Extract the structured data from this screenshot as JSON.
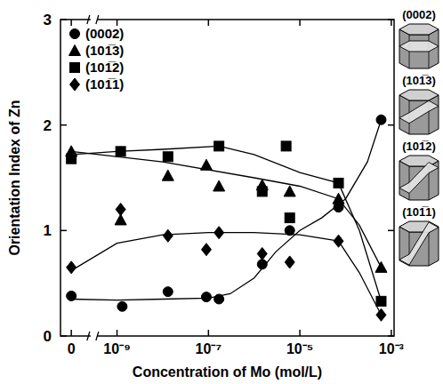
{
  "chart_data": {
    "type": "scatter",
    "x_label": "Concentration of Mo (mol/L)",
    "y_label": "Orientation Index of Zn",
    "log": "x",
    "legend": "upper left",
    "xlim": [
      5.8e-11,
      0.00115
    ],
    "ylim": [
      0,
      3
    ],
    "xticks": [
      {
        "value": 1e-10,
        "label": "0"
      },
      {
        "value": 1e-09,
        "label": "10⁻⁹"
      },
      {
        "value": 1e-07,
        "label": "10⁻⁷"
      },
      {
        "value": 1e-05,
        "label": "10⁻⁵"
      },
      {
        "value": 0.001,
        "label": "10⁻³"
      }
    ],
    "yticks": [
      0,
      1,
      2,
      3
    ],
    "plane_icons": [
      "(0002)",
      "(101̅3)",
      "(101̅2)",
      "(101̅1)"
    ],
    "series": [
      {
        "name": "(0002)",
        "color": "#000000",
        "marker": "circle",
        "x": [
          1e-10,
          1.3e-09,
          1.3e-08,
          9e-08,
          1.7e-07,
          1.5e-06,
          6e-06,
          7e-05,
          0.0006
        ],
        "values": [
          0.38,
          0.28,
          0.42,
          0.37,
          0.35,
          0.68,
          1.0,
          1.22,
          2.05
        ],
        "fit_x": [
          1e-10,
          1e-09,
          1e-08,
          1e-07,
          3e-07,
          1e-06,
          3e-06,
          1e-05,
          3e-05,
          0.0001,
          0.0003,
          0.0006
        ],
        "fit_values": [
          0.35,
          0.34,
          0.35,
          0.36,
          0.4,
          0.55,
          0.8,
          1.0,
          1.12,
          1.3,
          1.65,
          2.05
        ]
      },
      {
        "name": "(101̅3)",
        "color": "#000000",
        "marker": "triangle",
        "x": [
          1e-10,
          1.2e-09,
          1.3e-08,
          9e-08,
          1.7e-07,
          1.5e-06,
          6e-06,
          7e-05,
          0.0006
        ],
        "values": [
          1.75,
          1.1,
          1.52,
          1.62,
          1.42,
          1.43,
          1.37,
          1.3,
          0.65
        ],
        "fit_x": [
          1e-10,
          1e-08,
          1e-06,
          1e-05,
          7e-05,
          0.0002,
          0.0006
        ],
        "fit_values": [
          1.75,
          1.65,
          1.5,
          1.42,
          1.3,
          1.05,
          0.65
        ]
      },
      {
        "name": "(101̅2)",
        "color": "#000000",
        "marker": "square",
        "x": [
          1e-10,
          1.2e-09,
          1.3e-08,
          1.7e-07,
          1.5e-06,
          5e-06,
          6e-06,
          7e-05,
          0.0006
        ],
        "values": [
          1.68,
          1.75,
          1.7,
          1.8,
          1.37,
          1.8,
          1.12,
          1.45,
          0.33
        ],
        "fit_x": [
          1e-10,
          1e-09,
          1e-08,
          1.7e-07,
          1e-06,
          1e-05,
          7e-05,
          0.0002,
          0.0006
        ],
        "fit_values": [
          1.72,
          1.75,
          1.77,
          1.8,
          1.72,
          1.55,
          1.45,
          1.0,
          0.33
        ]
      },
      {
        "name": "(101̅1)",
        "color": "#000000",
        "marker": "diamond",
        "x": [
          1e-10,
          1.2e-09,
          1.3e-08,
          9e-08,
          1.7e-07,
          1.5e-06,
          6e-06,
          7e-05,
          0.0006
        ],
        "values": [
          0.65,
          1.2,
          0.95,
          0.82,
          0.98,
          0.78,
          0.7,
          0.9,
          0.2
        ],
        "fit_x": [
          1e-10,
          1e-09,
          1e-08,
          1e-07,
          1e-06,
          1e-05,
          7e-05,
          0.0002,
          0.0006
        ],
        "fit_values": [
          0.62,
          0.88,
          0.96,
          0.98,
          0.98,
          0.96,
          0.9,
          0.6,
          0.2
        ]
      }
    ]
  }
}
